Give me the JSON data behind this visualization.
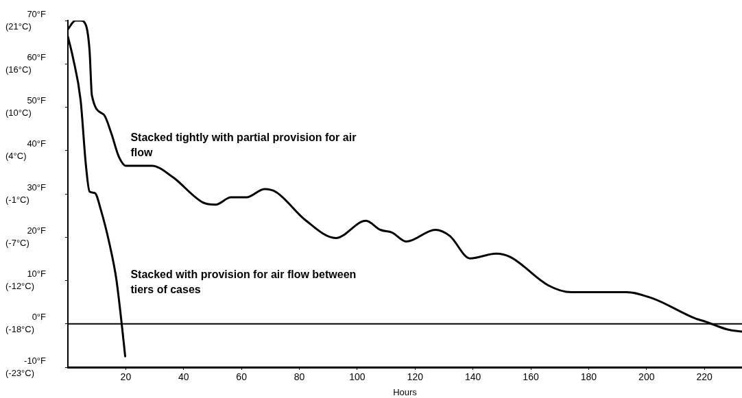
{
  "chart_data": {
    "type": "line",
    "xlabel": "Hours",
    "xlim": [
      0,
      233
    ],
    "xticks": [
      20,
      40,
      60,
      80,
      100,
      120,
      140,
      160,
      180,
      200,
      220
    ],
    "ylim": [
      -10,
      70
    ],
    "yticks": [
      {
        "value": 70,
        "label": "70°F"
      },
      {
        "value": 60,
        "label": "60°F"
      },
      {
        "value": 50,
        "label": "50°F"
      },
      {
        "value": 40,
        "label": "40°F"
      },
      {
        "value": 30,
        "label": "30°F"
      },
      {
        "value": 20,
        "label": "20°F"
      },
      {
        "value": 10,
        "label": "10°F"
      },
      {
        "value": 0,
        "label": "0°F"
      },
      {
        "value": -10,
        "label": "-10°F"
      }
    ],
    "y2lim": [
      -23.33,
      21.11
    ],
    "y2ticks": [
      {
        "value": 21.11,
        "label": "(21°C)"
      },
      {
        "value": 15.56,
        "label": "(16°C)"
      },
      {
        "value": 10,
        "label": "(10°C)"
      },
      {
        "value": 4.44,
        "label": "(4°C)"
      },
      {
        "value": -1.11,
        "label": "(-1°C)"
      },
      {
        "value": -6.67,
        "label": "(-7°C)"
      },
      {
        "value": -12.22,
        "label": "(-12°C)"
      },
      {
        "value": -17.78,
        "label": "(-18°C)"
      },
      {
        "value": -23.33,
        "label": "(-23°C)"
      }
    ],
    "grid": false,
    "legend": false,
    "marker": "none",
    "line_style": "solid",
    "series": [
      {
        "color": "#000000",
        "x": [
          0,
          2.6,
          4.4,
          6.2,
          7.5,
          8.3,
          12.4,
          15,
          17.6,
          20,
          29,
          36,
          46.7,
          51,
          56.4,
          61.7,
          68,
          72,
          82,
          92.6,
          103,
          108,
          112,
          117,
          127,
          132,
          139,
          148,
          153,
          166,
          174,
          193,
          202,
          217,
          220,
          228,
          233
        ],
        "values": [
          68,
          70,
          70,
          69,
          63,
          52.7,
          48.3,
          44,
          38.6,
          36.5,
          36.5,
          34,
          28,
          27.5,
          29.2,
          29.2,
          31.1,
          30.4,
          24,
          19.8,
          23.8,
          21.7,
          21.1,
          19,
          21.7,
          20.3,
          15.1,
          16.2,
          15.4,
          8.9,
          7.3,
          7.3,
          5.9,
          1.2,
          0.6,
          -1.3,
          -1.8
        ]
      },
      {
        "color": "#000000",
        "x": [
          0,
          1.7,
          4.4,
          6.2,
          7.5,
          9.3,
          11.4,
          14.5,
          16.7,
          18.6,
          19.8
        ],
        "values": [
          66.3,
          61.6,
          51.6,
          36.8,
          30.5,
          30.2,
          26.3,
          18.1,
          10.5,
          0,
          -7.5
        ]
      }
    ],
    "ref_lines": [
      {
        "axis": "y",
        "value": 0,
        "color": "#000000"
      }
    ],
    "annotations": [
      "Stacked tightly with partial provision for air flow",
      "Stacked with provision for air flow between tiers of cases"
    ]
  }
}
